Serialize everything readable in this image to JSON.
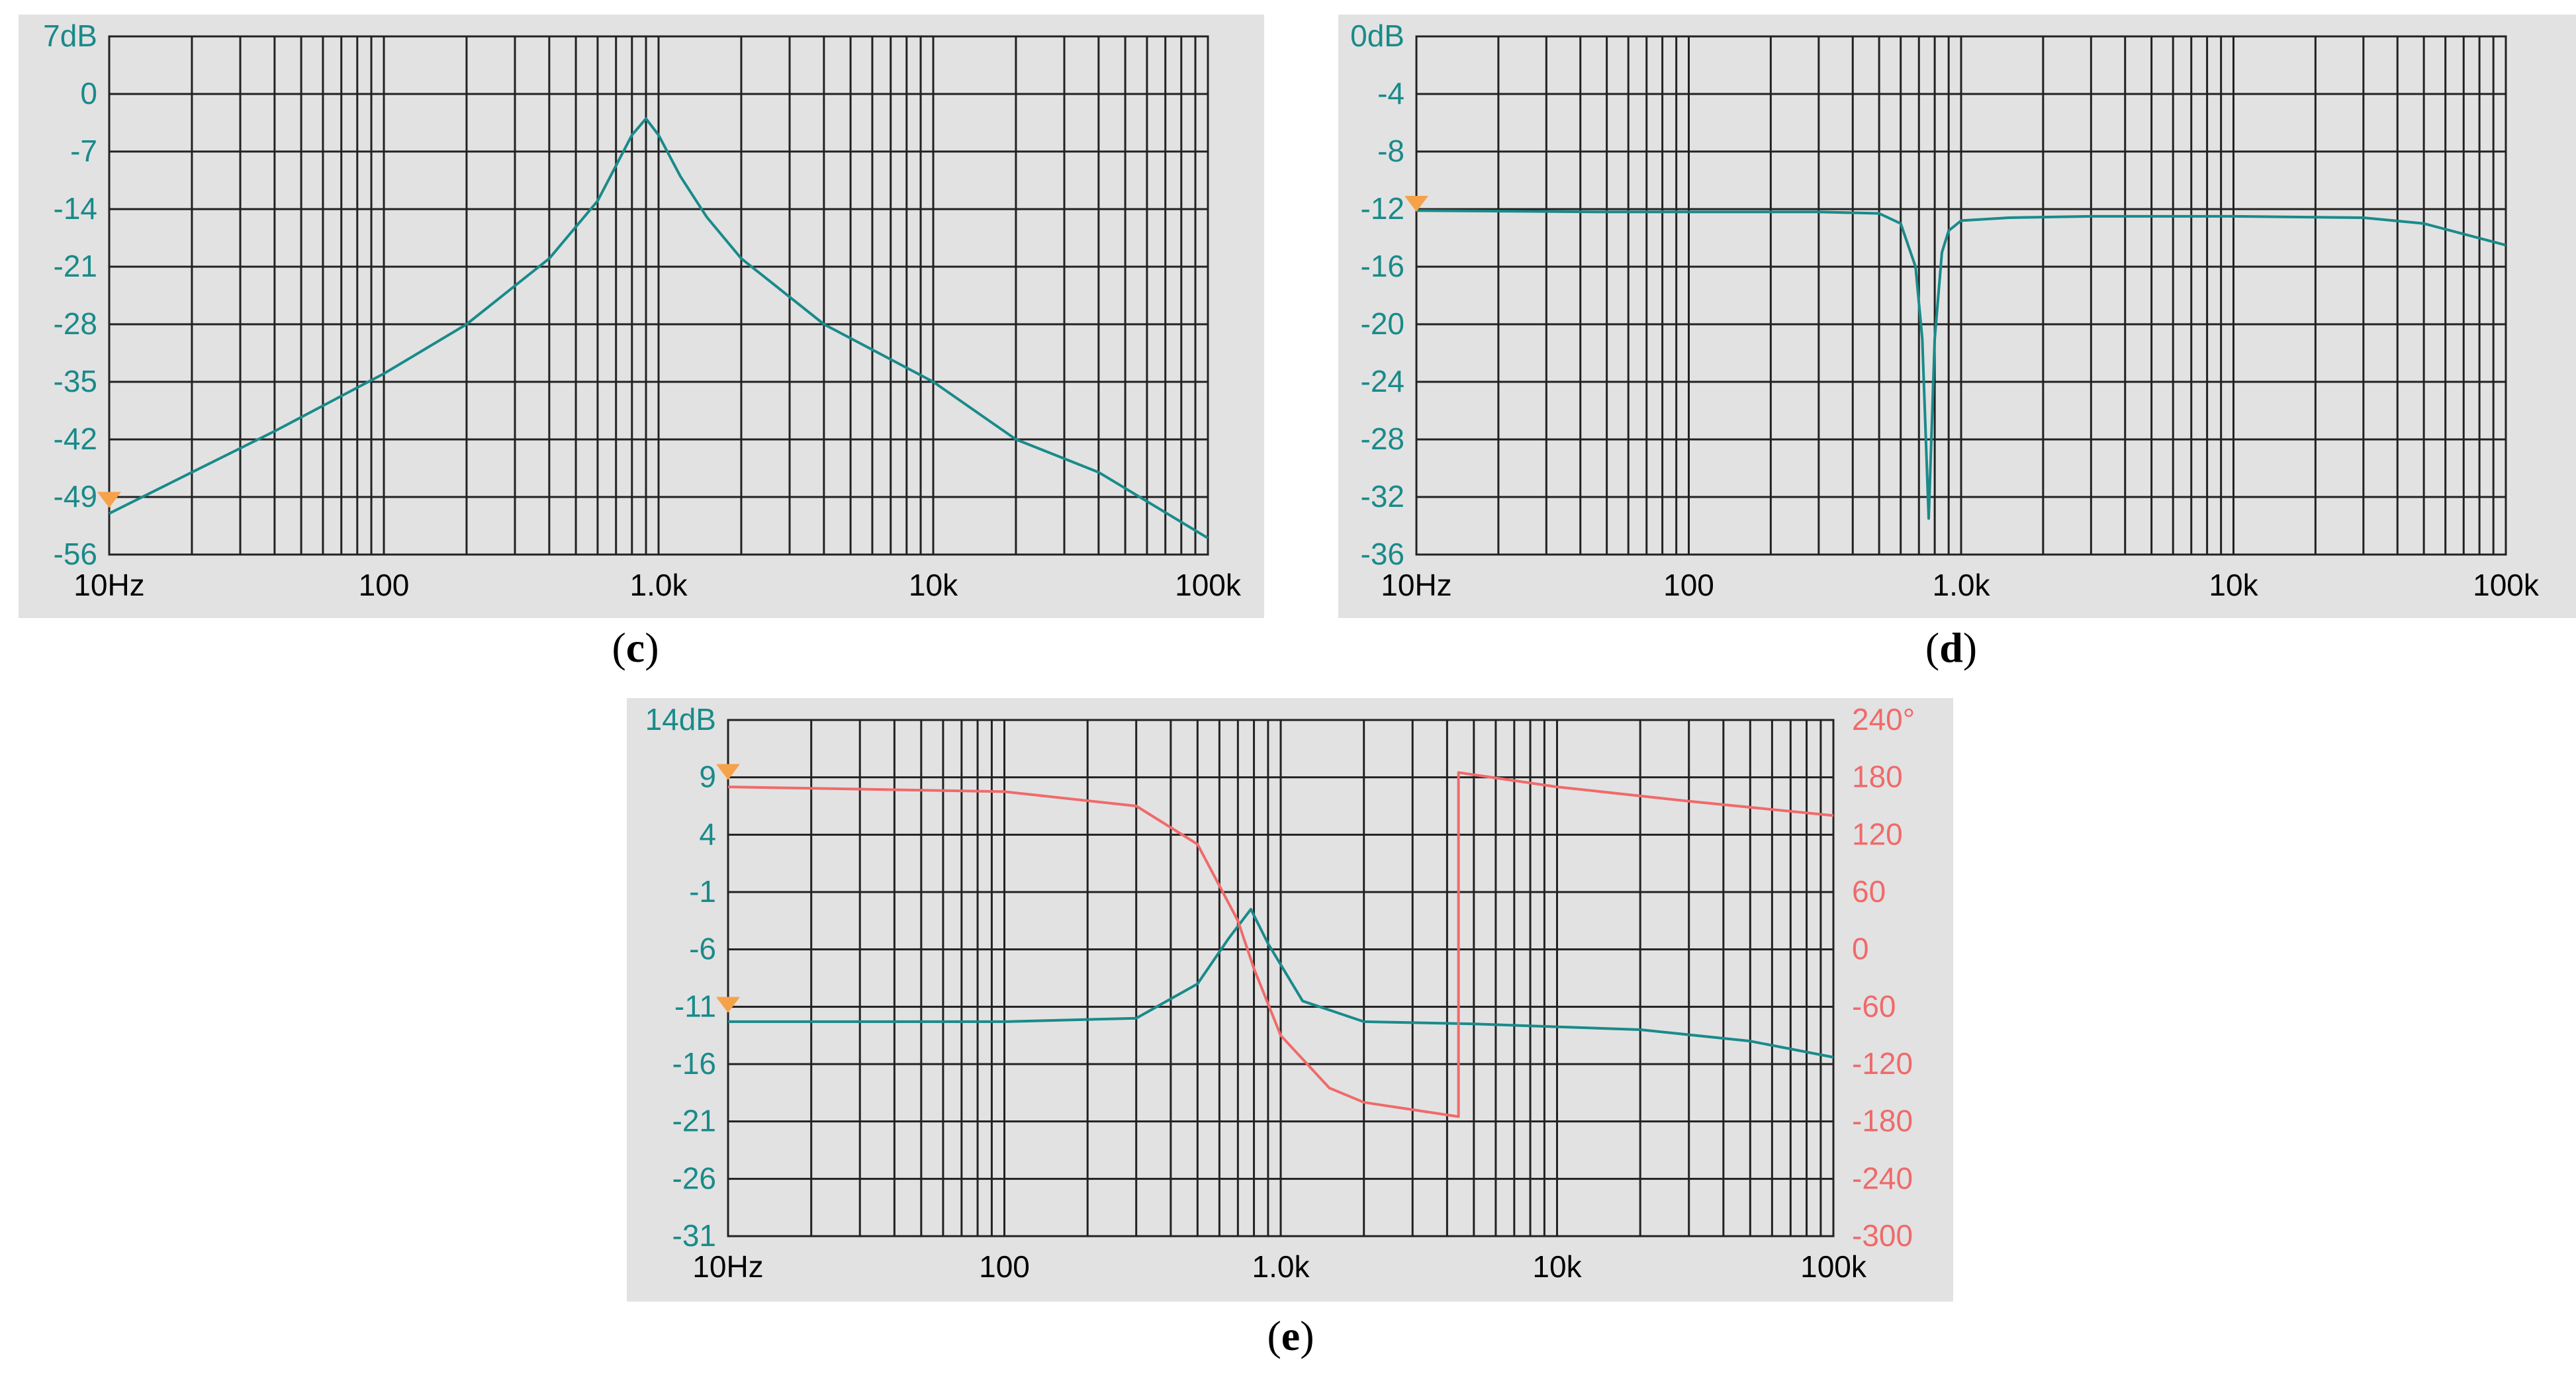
{
  "colors": {
    "panel_bg": "#e2e2e2",
    "grid": "#222222",
    "magnitude": "#1a8a8a",
    "phase": "#f06a6a",
    "marker": "#f6a24a",
    "axis_text_left": "#1a8a8a",
    "axis_text_right": "#f06a6a",
    "caption": "#000000"
  },
  "chart_data": [
    {
      "id": "c",
      "caption_letter": "c",
      "type": "line",
      "x_scale": "log",
      "xlim": [
        10,
        100000
      ],
      "ylim": [
        -56,
        7
      ],
      "x_ticks": [
        10,
        100,
        1000,
        10000,
        100000
      ],
      "x_tick_labels": [
        "10Hz",
        "100",
        "1.0k",
        "10k",
        "100k"
      ],
      "y_ticks": [
        7,
        0,
        -7,
        -14,
        -21,
        -28,
        -35,
        -42,
        -49,
        -56
      ],
      "y_tick_labels": [
        "7dB",
        "0",
        "-7",
        "-14",
        "-21",
        "-28",
        "-35",
        "-42",
        "-49",
        "-56"
      ],
      "marker_level": -50,
      "series": [
        {
          "name": "magnitude",
          "unit": "dB",
          "x": [
            10,
            20,
            40,
            100,
            200,
            400,
            600,
            800,
            900,
            1000,
            1200,
            1500,
            2000,
            4000,
            10000,
            20000,
            40000,
            100000
          ],
          "y": [
            -51,
            -46,
            -41,
            -34,
            -28,
            -20,
            -13,
            -5,
            -3,
            -5,
            -10,
            -15,
            -20,
            -28,
            -35,
            -42,
            -46,
            -54
          ]
        }
      ]
    },
    {
      "id": "d",
      "caption_letter": "d",
      "type": "line",
      "x_scale": "log",
      "xlim": [
        10,
        100000
      ],
      "ylim": [
        -36,
        0
      ],
      "x_ticks": [
        10,
        100,
        1000,
        10000,
        100000
      ],
      "x_tick_labels": [
        "10Hz",
        "100",
        "1.0k",
        "10k",
        "100k"
      ],
      "y_ticks": [
        0,
        -4,
        -8,
        -12,
        -16,
        -20,
        -24,
        -28,
        -32,
        -36
      ],
      "y_tick_labels": [
        "0dB",
        "-4",
        "-8",
        "-12",
        "-16",
        "-20",
        "-24",
        "-28",
        "-32",
        "-36"
      ],
      "marker_level": -12,
      "series": [
        {
          "name": "magnitude",
          "unit": "dB",
          "x": [
            10,
            50,
            300,
            500,
            600,
            680,
            720,
            760,
            800,
            850,
            900,
            1000,
            1500,
            3000,
            10000,
            30000,
            50000,
            100000
          ],
          "y": [
            -12.1,
            -12.2,
            -12.2,
            -12.3,
            -13,
            -16,
            -21,
            -33.5,
            -21,
            -15,
            -13.5,
            -12.8,
            -12.6,
            -12.5,
            -12.5,
            -12.6,
            -13,
            -14.5
          ]
        }
      ]
    },
    {
      "id": "e",
      "caption_letter": "e",
      "type": "line",
      "x_scale": "log",
      "xlim": [
        10,
        100000
      ],
      "ylim": [
        -31,
        14
      ],
      "y2lim": [
        -300,
        240
      ],
      "x_ticks": [
        10,
        100,
        1000,
        10000,
        100000
      ],
      "x_tick_labels": [
        "10Hz",
        "100",
        "1.0k",
        "10k",
        "100k"
      ],
      "y_ticks": [
        14,
        9,
        4,
        -1,
        -6,
        -11,
        -16,
        -21,
        -26,
        -31
      ],
      "y_tick_labels": [
        "14dB",
        "9",
        "4",
        "-1",
        "-6",
        "-11",
        "-16",
        "-21",
        "-26",
        "-31"
      ],
      "y2_ticks": [
        240,
        180,
        120,
        60,
        0,
        -60,
        -120,
        -180,
        -240,
        -300
      ],
      "y2_tick_labels": [
        "240°",
        "180",
        "120",
        "60",
        "0",
        "-60",
        "-120",
        "-180",
        "-240",
        "-300"
      ],
      "marker_levels": [
        9,
        -11.3
      ],
      "series": [
        {
          "name": "magnitude",
          "unit": "dB",
          "axis": "left",
          "x": [
            10,
            100,
            300,
            500,
            650,
            780,
            900,
            1200,
            2000,
            5000,
            20000,
            50000,
            100000
          ],
          "y": [
            -12.3,
            -12.3,
            -12,
            -9,
            -5,
            -2.5,
            -5.5,
            -10.5,
            -12.3,
            -12.5,
            -13,
            -14,
            -15.4
          ]
        },
        {
          "name": "phase",
          "unit": "deg",
          "axis": "right",
          "x": [
            10,
            100,
            300,
            500,
            700,
            800,
            1000,
            1500,
            2000,
            4400,
            4400,
            10000,
            30000,
            100000
          ],
          "y": [
            170,
            165,
            150,
            110,
            30,
            -20,
            -90,
            -145,
            -160,
            -175,
            185,
            170,
            155,
            140
          ]
        }
      ]
    }
  ]
}
